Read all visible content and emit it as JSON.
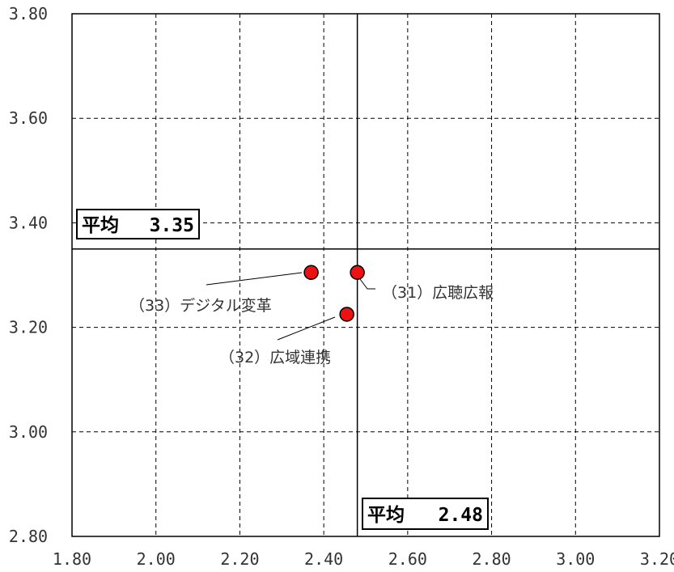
{
  "chart_data": {
    "type": "scatter",
    "title": "",
    "xlabel": "",
    "ylabel": "",
    "xlim": [
      1.8,
      3.2
    ],
    "ylim": [
      2.8,
      3.8
    ],
    "x_ticks": [
      "1.80",
      "2.00",
      "2.20",
      "2.40",
      "2.60",
      "2.80",
      "3.00",
      "3.20"
    ],
    "y_ticks": [
      "2.80",
      "3.00",
      "3.20",
      "3.40",
      "3.60",
      "3.80"
    ],
    "grid": true,
    "marker_color": "#ee1111",
    "points": [
      {
        "label": "（33）デジタル変革",
        "x": 2.37,
        "y": 3.305
      },
      {
        "label": "（31）広聴広報",
        "x": 2.48,
        "y": 3.305
      },
      {
        "label": "（32）広域連携",
        "x": 2.455,
        "y": 3.225
      }
    ],
    "average_x": {
      "label": "平均",
      "value": "2.48",
      "x": 2.48
    },
    "average_y": {
      "label": "平均",
      "value": "3.35",
      "y": 3.35
    }
  }
}
